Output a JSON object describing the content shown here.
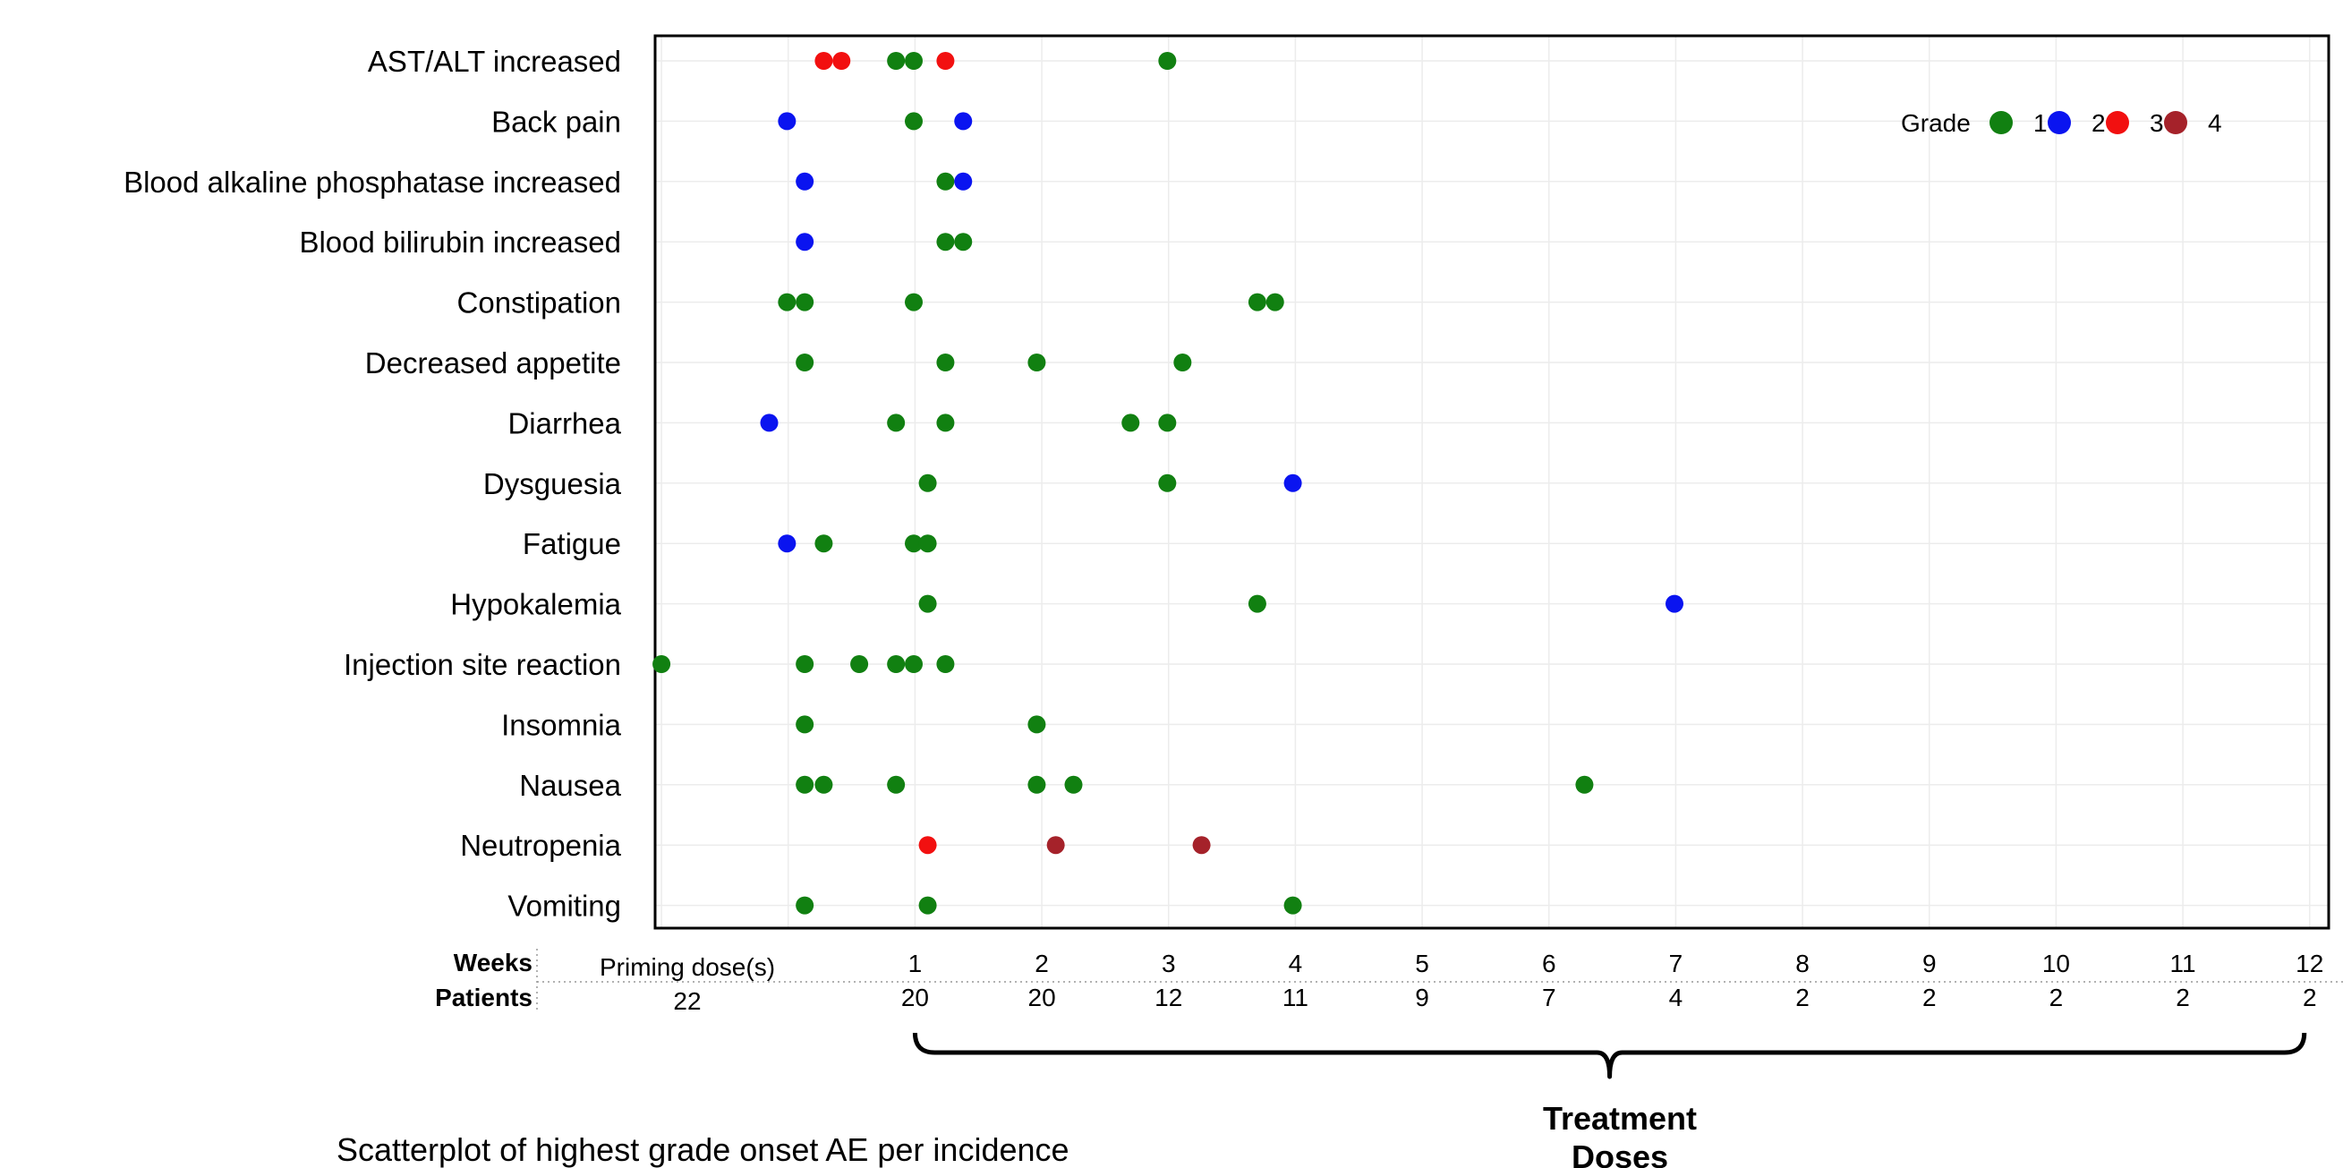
{
  "chart_data": {
    "type": "scatter",
    "title": "",
    "caption": "Scatterplot of highest grade onset AE per incidence",
    "xlabel": "",
    "ylabel": "",
    "legend": {
      "title": "Grade",
      "placement": "top-right",
      "entries": [
        {
          "label": "1",
          "color": "#118011"
        },
        {
          "label": "2",
          "color": "#0a14f0"
        },
        {
          "label": "3",
          "color": "#f21010"
        },
        {
          "label": "4",
          "color": "#a5222a"
        }
      ]
    },
    "categories": [
      "AST/ALT increased",
      "Back pain",
      "Blood alkaline phosphatase increased",
      "Blood bilirubin increased",
      "Constipation",
      "Decreased appetite",
      "Diarrhea",
      "Dysguesia",
      "Fatigue",
      "Hypokalemia",
      "Injection site reaction",
      "Insomnia",
      "Nausea",
      "Neutropenia",
      "Vomiting"
    ],
    "xlim": [
      -1.05,
      12.15
    ],
    "grid": true,
    "weeks_row": {
      "label": "Weeks",
      "priming_label": "Priming dose(s)",
      "ticks": [
        "1",
        "2",
        "3",
        "4",
        "5",
        "6",
        "7",
        "8",
        "9",
        "10",
        "11",
        "12"
      ]
    },
    "patients_row": {
      "label": "Patients",
      "priming_value": "22",
      "values": [
        "20",
        "20",
        "12",
        "11",
        "9",
        "7",
        "4",
        "2",
        "2",
        "2",
        "2",
        "2"
      ]
    },
    "bracket_label": [
      "Treatment",
      "Doses"
    ],
    "series": [
      {
        "name": "1",
        "color": "#118011",
        "points": [
          {
            "y": "AST/ALT increased",
            "x": 0.85
          },
          {
            "y": "AST/ALT increased",
            "x": 0.99
          },
          {
            "y": "AST/ALT increased",
            "x": 2.99
          },
          {
            "y": "Back pain",
            "x": 0.99
          },
          {
            "y": "Blood alkaline phosphatase increased",
            "x": 1.24
          },
          {
            "y": "Blood bilirubin increased",
            "x": 1.24
          },
          {
            "y": "Blood bilirubin increased",
            "x": 1.38
          },
          {
            "y": "Constipation",
            "x": -0.01
          },
          {
            "y": "Constipation",
            "x": 0.13
          },
          {
            "y": "Constipation",
            "x": 0.99
          },
          {
            "y": "Constipation",
            "x": 3.7
          },
          {
            "y": "Constipation",
            "x": 3.84
          },
          {
            "y": "Decreased appetite",
            "x": 0.13
          },
          {
            "y": "Decreased appetite",
            "x": 1.24
          },
          {
            "y": "Decreased appetite",
            "x": 1.96
          },
          {
            "y": "Decreased appetite",
            "x": 3.11
          },
          {
            "y": "Diarrhea",
            "x": 0.85
          },
          {
            "y": "Diarrhea",
            "x": 1.24
          },
          {
            "y": "Diarrhea",
            "x": 2.7
          },
          {
            "y": "Diarrhea",
            "x": 2.99
          },
          {
            "y": "Dysguesia",
            "x": 1.1
          },
          {
            "y": "Dysguesia",
            "x": 2.99
          },
          {
            "y": "Fatigue",
            "x": 0.28
          },
          {
            "y": "Fatigue",
            "x": 0.99
          },
          {
            "y": "Fatigue",
            "x": 1.1
          },
          {
            "y": "Hypokalemia",
            "x": 1.1
          },
          {
            "y": "Hypokalemia",
            "x": 3.7
          },
          {
            "y": "Injection site reaction",
            "x": -1.0
          },
          {
            "y": "Injection site reaction",
            "x": 0.13
          },
          {
            "y": "Injection site reaction",
            "x": 0.56
          },
          {
            "y": "Injection site reaction",
            "x": 0.85
          },
          {
            "y": "Injection site reaction",
            "x": 0.99
          },
          {
            "y": "Injection site reaction",
            "x": 1.24
          },
          {
            "y": "Insomnia",
            "x": 0.13
          },
          {
            "y": "Insomnia",
            "x": 1.96
          },
          {
            "y": "Nausea",
            "x": 0.13
          },
          {
            "y": "Nausea",
            "x": 0.28
          },
          {
            "y": "Nausea",
            "x": 0.85
          },
          {
            "y": "Nausea",
            "x": 1.96
          },
          {
            "y": "Nausea",
            "x": 2.25
          },
          {
            "y": "Nausea",
            "x": 6.28
          },
          {
            "y": "Vomiting",
            "x": 0.13
          },
          {
            "y": "Vomiting",
            "x": 1.1
          },
          {
            "y": "Vomiting",
            "x": 3.98
          }
        ]
      },
      {
        "name": "2",
        "color": "#0a14f0",
        "points": [
          {
            "y": "Back pain",
            "x": -0.01
          },
          {
            "y": "Back pain",
            "x": 1.38
          },
          {
            "y": "Blood alkaline phosphatase increased",
            "x": 0.13
          },
          {
            "y": "Blood alkaline phosphatase increased",
            "x": 1.38
          },
          {
            "y": "Blood bilirubin increased",
            "x": 0.13
          },
          {
            "y": "Diarrhea",
            "x": -0.15
          },
          {
            "y": "Dysguesia",
            "x": 3.98
          },
          {
            "y": "Fatigue",
            "x": -0.01
          },
          {
            "y": "Hypokalemia",
            "x": 6.99
          }
        ]
      },
      {
        "name": "3",
        "color": "#f21010",
        "points": [
          {
            "y": "AST/ALT increased",
            "x": 0.28
          },
          {
            "y": "AST/ALT increased",
            "x": 0.42
          },
          {
            "y": "AST/ALT increased",
            "x": 1.24
          },
          {
            "y": "Neutropenia",
            "x": 1.1
          }
        ]
      },
      {
        "name": "4",
        "color": "#a5222a",
        "points": [
          {
            "y": "Neutropenia",
            "x": 2.11
          },
          {
            "y": "Neutropenia",
            "x": 3.26
          }
        ]
      }
    ]
  }
}
